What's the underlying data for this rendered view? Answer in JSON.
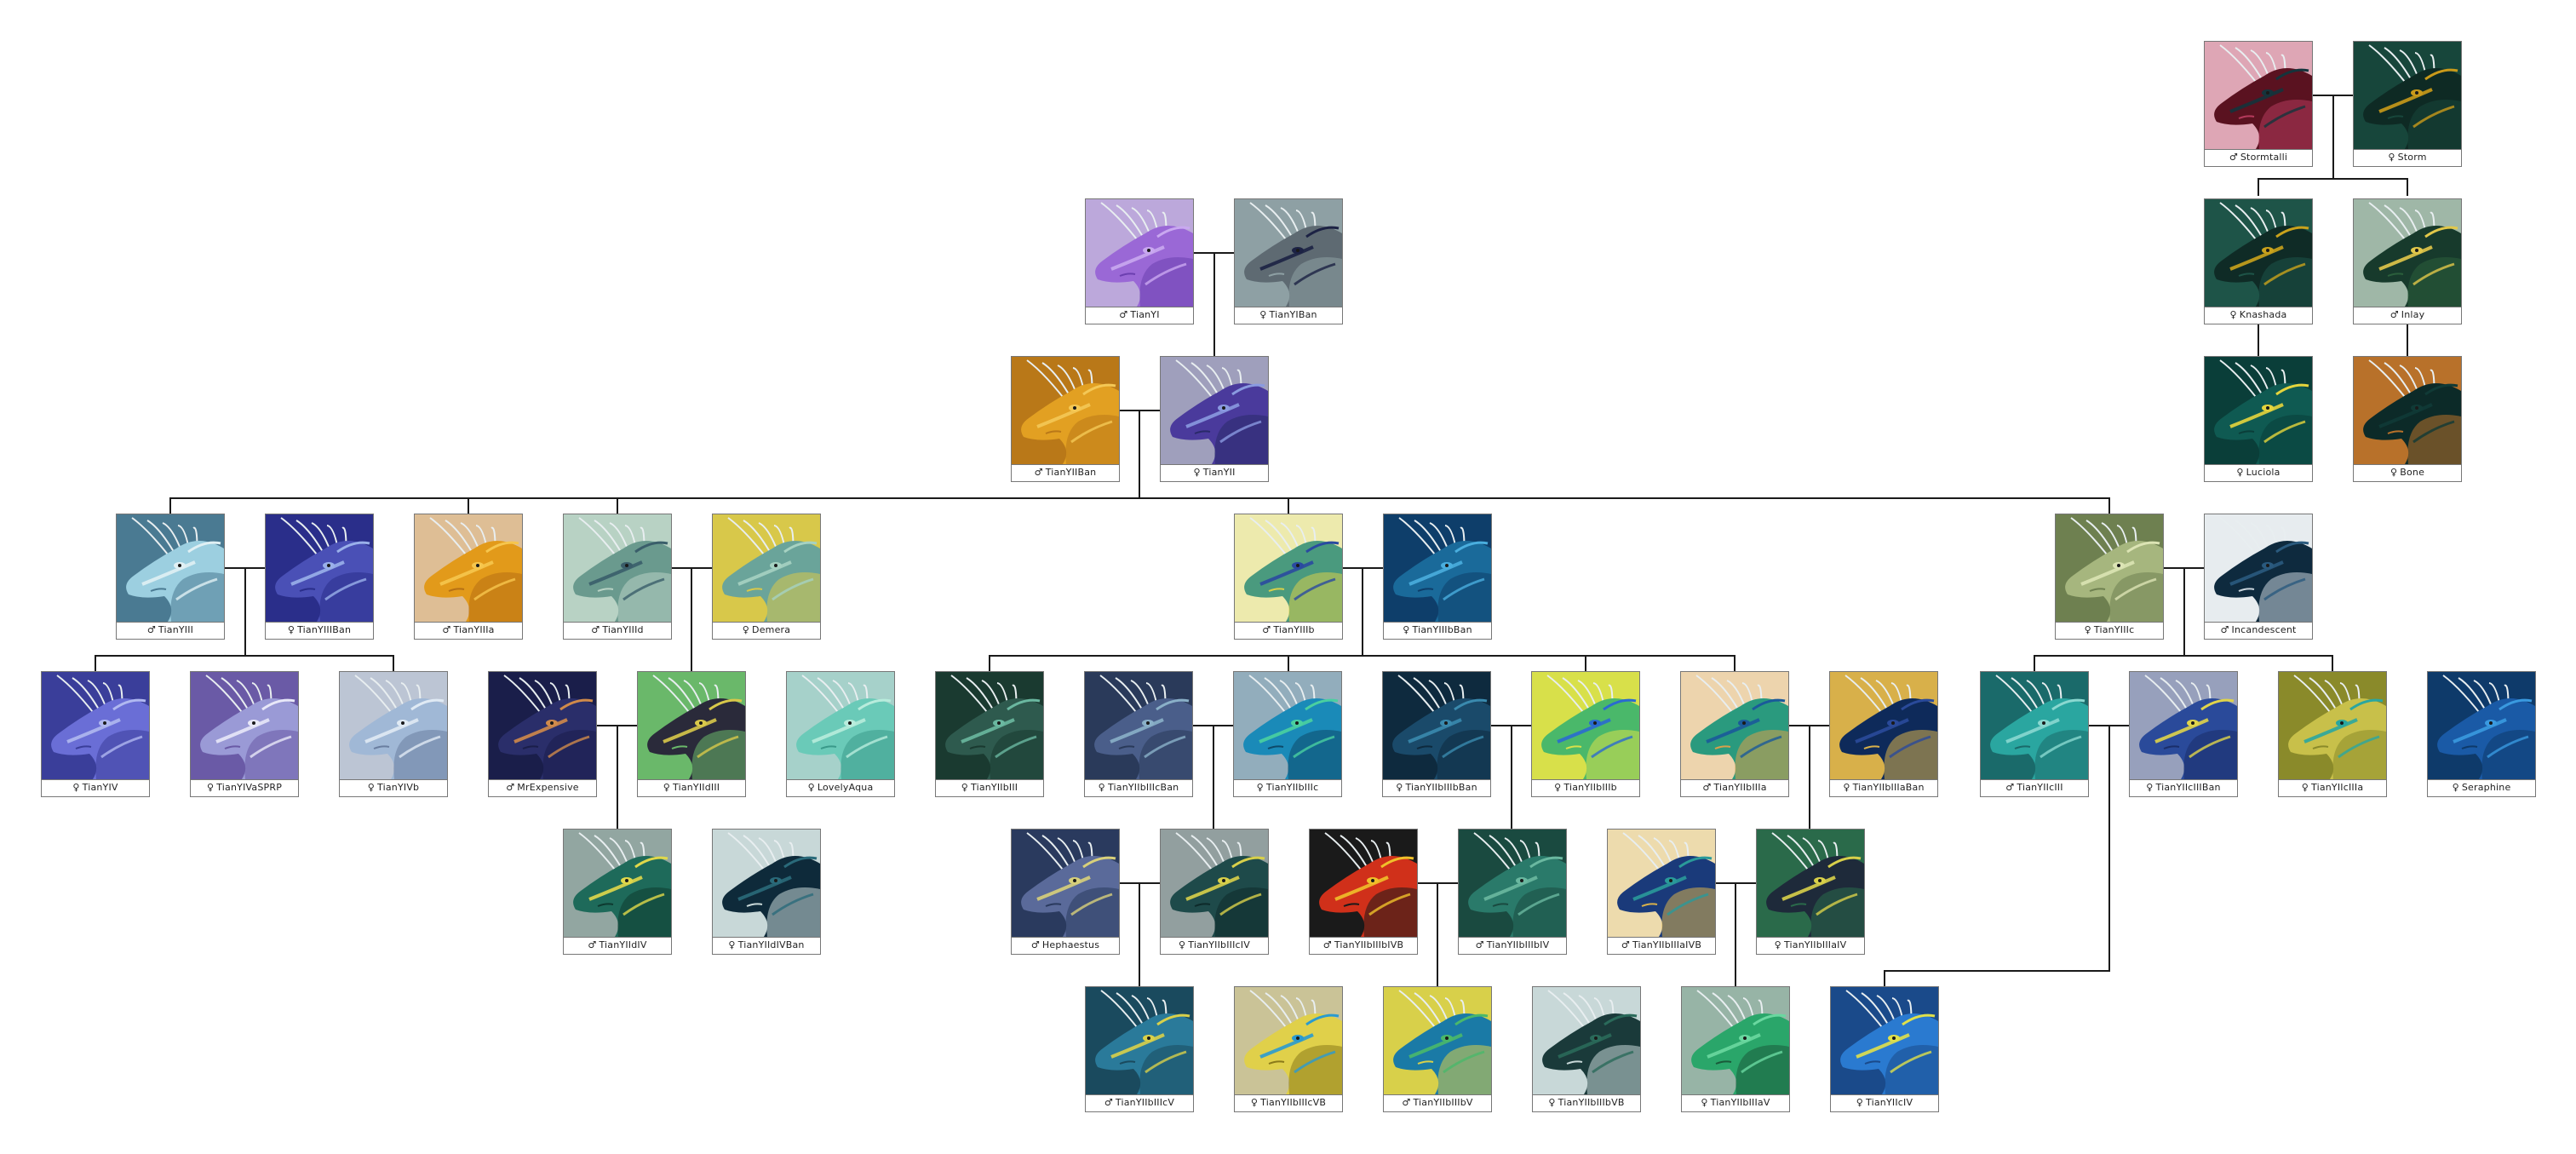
{
  "dragons": [
    {
      "id": "stormtalli",
      "name": "Stormtalli",
      "sex": "♂",
      "colors": [
        "#5a1220",
        "#14343c",
        "#b53a5c"
      ]
    },
    {
      "id": "storm",
      "name": "Storm",
      "sex": "♀",
      "colors": [
        "#0e2a24",
        "#c99a1a",
        "#17463b"
      ]
    },
    {
      "id": "knashada",
      "name": "Knashada",
      "sex": "♀",
      "colors": [
        "#0f2b26",
        "#c9a21c",
        "#1e5448"
      ]
    },
    {
      "id": "inlay",
      "name": "Inlay",
      "sex": "♂",
      "colors": [
        "#173a2c",
        "#e2c84a",
        "#2b5f3c"
      ]
    },
    {
      "id": "luciola",
      "name": "Luciola",
      "sex": "♀",
      "colors": [
        "#0f5a52",
        "#e5d43c",
        "#0a3e39"
      ]
    },
    {
      "id": "bone",
      "name": "Bone",
      "sex": "♀",
      "colors": [
        "#0c2a28",
        "#103a36",
        "#b8712a"
      ]
    },
    {
      "id": "tianyi",
      "name": "TianYI",
      "sex": "♂",
      "colors": [
        "#9a68d6",
        "#c9a8f0",
        "#6c3fb0"
      ]
    },
    {
      "id": "tianyiban",
      "name": "TianYIBan",
      "sex": "♀",
      "colors": [
        "#5e6a72",
        "#1c2244",
        "#8ea0a4"
      ]
    },
    {
      "id": "tianyiiban",
      "name": "TianYIIBan",
      "sex": "♂",
      "colors": [
        "#e2a022",
        "#f4c856",
        "#b97818"
      ]
    },
    {
      "id": "tianyii",
      "name": "TianYII",
      "sex": "♀",
      "colors": [
        "#4a3a9c",
        "#8a9ae0",
        "#2a2a6a"
      ]
    },
    {
      "id": "tianyiii",
      "name": "TianYIII",
      "sex": "♂",
      "colors": [
        "#9ccfe0",
        "#e0f0f4",
        "#4a7a92"
      ]
    },
    {
      "id": "tianyiiiban",
      "name": "TianYIIIBan",
      "sex": "♀",
      "colors": [
        "#4a50b6",
        "#9ab0ea",
        "#2a2e8a"
      ]
    },
    {
      "id": "tianyiiia",
      "name": "TianYIIIa",
      "sex": "♂",
      "colors": [
        "#e29a1a",
        "#f6c64e",
        "#b67014"
      ]
    },
    {
      "id": "tianyiiid",
      "name": "TianYIIId",
      "sex": "♂",
      "colors": [
        "#6a9a8e",
        "#3a5e6a",
        "#b8d2c4"
      ]
    },
    {
      "id": "demera",
      "name": "Demera",
      "sex": "♀",
      "colors": [
        "#6aa49a",
        "#a6d2c2",
        "#d8c84a"
      ]
    },
    {
      "id": "tianyiiib",
      "name": "TianYIIIb",
      "sex": "♂",
      "colors": [
        "#4a9a7e",
        "#2a4aa0",
        "#d8d04a"
      ]
    },
    {
      "id": "tianyiiibban",
      "name": "TianYIIIbBan",
      "sex": "♀",
      "colors": [
        "#1a6a9a",
        "#4aaede",
        "#0e3e6a"
      ]
    },
    {
      "id": "tianyiiic",
      "name": "TianYIIIc",
      "sex": "♀",
      "colors": [
        "#a6b67e",
        "#dce4b4",
        "#6e8050"
      ]
    },
    {
      "id": "incandescent",
      "name": "Incandescent",
      "sex": "♂",
      "colors": [
        "#0e2a3e",
        "#2a5a7e",
        "#c9d4dc"
      ]
    },
    {
      "id": "tianyiv",
      "name": "TianYIV",
      "sex": "♀",
      "colors": [
        "#6a6ed6",
        "#b0b8f0",
        "#3a3e9a"
      ]
    },
    {
      "id": "tianyivasprp",
      "name": "TianYIVaSPRP",
      "sex": "♀",
      "colors": [
        "#9a9ad6",
        "#e8e8f8",
        "#6a5aa6"
      ]
    },
    {
      "id": "tianyivb",
      "name": "TianYIVb",
      "sex": "♀",
      "colors": [
        "#a0b8d6",
        "#e0eaf4",
        "#6a7ea0"
      ]
    },
    {
      "id": "mrexpensive",
      "name": "MrExpensive",
      "sex": "♂",
      "colors": [
        "#2a2e6a",
        "#d08a4a",
        "#1a1e4a"
      ]
    },
    {
      "id": "tianyiidiii",
      "name": "TianYIIdIII",
      "sex": "♀",
      "colors": [
        "#2a2a3a",
        "#d8c84a",
        "#6ab86a"
      ]
    },
    {
      "id": "lovelyaqua",
      "name": "LovelyAqua",
      "sex": "♀",
      "colors": [
        "#6acab8",
        "#b8ecdc",
        "#3a9a8a"
      ]
    },
    {
      "id": "tianyiibiii",
      "name": "TianYIIbIII",
      "sex": "♀",
      "colors": [
        "#2e5a4e",
        "#6ab8a0",
        "#1a3a30"
      ]
    },
    {
      "id": "tianyiibiiicban",
      "name": "TianYIIbIIIcBan",
      "sex": "♀",
      "colors": [
        "#4a5e8a",
        "#8ab0c8",
        "#2a3a5a"
      ]
    },
    {
      "id": "tianyiibiiic",
      "name": "TianYIIbIIIc",
      "sex": "♀",
      "colors": [
        "#1a8ab8",
        "#4ad0a0",
        "#0e4a6a"
      ]
    },
    {
      "id": "tianyiibiiibban",
      "name": "TianYIIbIIIbBan",
      "sex": "♀",
      "colors": [
        "#1a4a6a",
        "#3a8aae",
        "#0e2a3e"
      ]
    },
    {
      "id": "tianyiibiiib",
      "name": "TianYIIbIIIb",
      "sex": "♀",
      "colors": [
        "#4ab86a",
        "#2a6ad0",
        "#d8e04a"
      ]
    },
    {
      "id": "tianyiibiiia",
      "name": "TianYIIbIIIa",
      "sex": "♂",
      "colors": [
        "#2a9a7e",
        "#1a5a9a",
        "#d8a04a"
      ]
    },
    {
      "id": "tianyiibiiiaban",
      "name": "TianYIIbIIIaBan",
      "sex": "♀",
      "colors": [
        "#0e2a5a",
        "#2a4a9a",
        "#d8b04a"
      ]
    },
    {
      "id": "tianyiiciii",
      "name": "TianYIIcIII",
      "sex": "♂",
      "colors": [
        "#2aa6a0",
        "#8ad8d0",
        "#1a6a6a"
      ]
    },
    {
      "id": "tianyiiciiiban",
      "name": "TianYIIcIIIBan",
      "sex": "♀",
      "colors": [
        "#2a4a9a",
        "#e0d44a",
        "#1a2e6a"
      ]
    },
    {
      "id": "tianyiiciiia",
      "name": "TianYIIcIIIa",
      "sex": "♀",
      "colors": [
        "#c8c04a",
        "#2aa6a0",
        "#8a8a2a"
      ]
    },
    {
      "id": "seraphine",
      "name": "Seraphine",
      "sex": "♀",
      "colors": [
        "#1a5aa6",
        "#3a9ae0",
        "#0e3a6a"
      ]
    },
    {
      "id": "tianyiidiv",
      "name": "TianYIIdIV",
      "sex": "♂",
      "colors": [
        "#1e6a5a",
        "#e0d84a",
        "#0e3a30"
      ]
    },
    {
      "id": "tianyiidivban",
      "name": "TianYIIdIVBan",
      "sex": "♀",
      "colors": [
        "#0e2a3a",
        "#2a6a7a",
        "#c8d8d8"
      ]
    },
    {
      "id": "hephaestus",
      "name": "Hephaestus",
      "sex": "♂",
      "colors": [
        "#5a6a9a",
        "#d8d07a",
        "#2a3a5e"
      ]
    },
    {
      "id": "tianyiibiiiciv",
      "name": "TianYIIbIIIcIV",
      "sex": "♀",
      "colors": [
        "#1e4a4a",
        "#d8d04a",
        "#0e2a2a"
      ]
    },
    {
      "id": "tianyiibiiibivb",
      "name": "TianYIIbIIIbIVB",
      "sex": "♂",
      "colors": [
        "#d0301a",
        "#f0c02a",
        "#1a1a1a"
      ]
    },
    {
      "id": "tianyiibiiibiv",
      "name": "TianYIIbIIIbIV",
      "sex": "♂",
      "colors": [
        "#2a7a6a",
        "#6ab8a0",
        "#1a4a40"
      ]
    },
    {
      "id": "tianyiibiiiaivb",
      "name": "TianYIIbIIIaIVB",
      "sex": "♂",
      "colors": [
        "#1a3a7a",
        "#2a9a9a",
        "#d8b04a"
      ]
    },
    {
      "id": "tianyiibiiiaiv",
      "name": "TianYIIbIIIaIV",
      "sex": "♀",
      "colors": [
        "#1e2a3a",
        "#d8d04a",
        "#2a6a4a"
      ]
    },
    {
      "id": "tianyiibiiicv",
      "name": "TianYIIbIIIcV",
      "sex": "♂",
      "colors": [
        "#2a7a9a",
        "#d8d04a",
        "#1a4a5e"
      ]
    },
    {
      "id": "tianyiibiiicvb",
      "name": "TianYIIbIIIcVB",
      "sex": "♀",
      "colors": [
        "#e0d04a",
        "#2a9ad0",
        "#8a7a1a"
      ]
    },
    {
      "id": "tianyiibiiibv",
      "name": "TianYIIbIIIbV",
      "sex": "♂",
      "colors": [
        "#1a7aa6",
        "#4ab86a",
        "#d8d04a"
      ]
    },
    {
      "id": "tianyiibiiibvb",
      "name": "TianYIIbIIIbVB",
      "sex": "♀",
      "colors": [
        "#1a3a3a",
        "#2a6a5a",
        "#c8d8d8"
      ]
    },
    {
      "id": "tianyiibiiiav",
      "name": "TianYIIbIIIaV",
      "sex": "♀",
      "colors": [
        "#2aa66a",
        "#6ad8a0",
        "#1a5a3a"
      ]
    },
    {
      "id": "tianyiiciv",
      "name": "TianYIIcIV",
      "sex": "♀",
      "colors": [
        "#2a7ad0",
        "#e0e04a",
        "#1a4a8a"
      ]
    }
  ]
}
